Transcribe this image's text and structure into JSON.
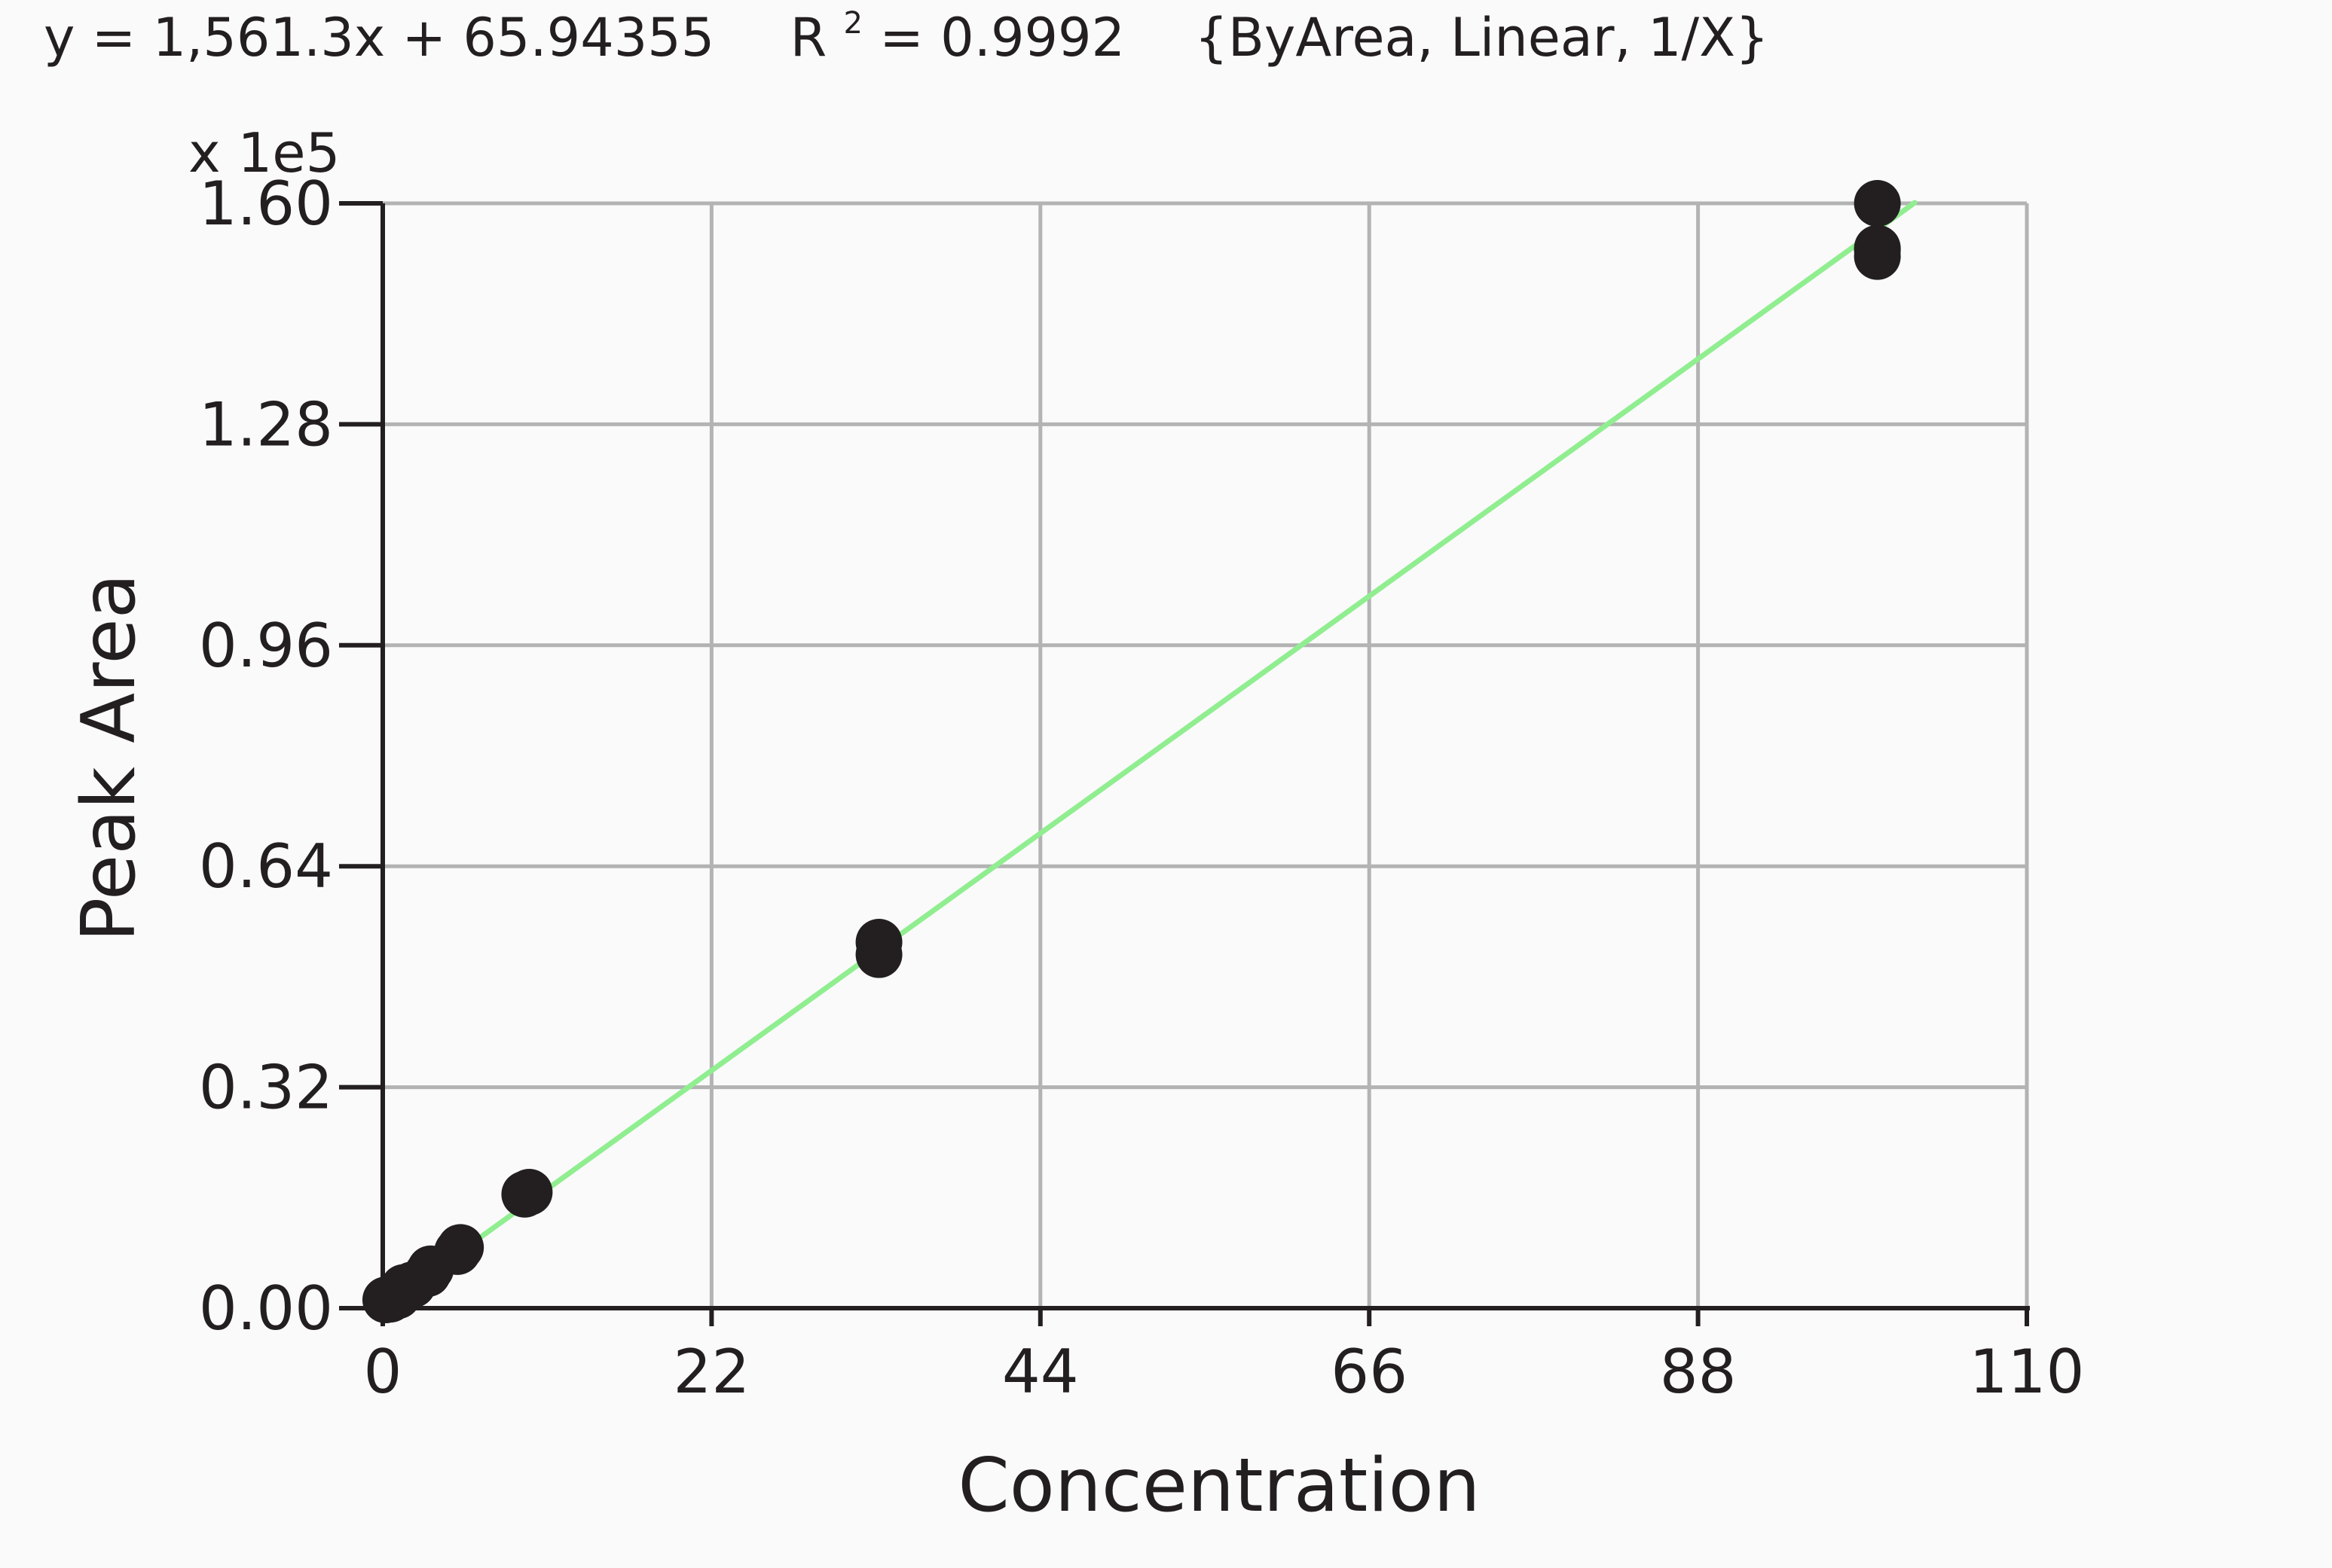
{
  "equation": {
    "prefix": "y = 1,561.3x + 65.94355",
    "r_symbol": "R",
    "r_exponent": "2",
    "r_value": " = 0.9992",
    "options": "{ByArea, Linear, 1/X}"
  },
  "colors": {
    "background": "#fafafa",
    "points": "#231f20",
    "fit_line": "#90ee90",
    "grid": "#b3b3b3",
    "axis": "#231f20"
  },
  "chart_data": {
    "type": "scatter",
    "xlabel": "Concentration",
    "ylabel": "Peak Area",
    "y_multiplier": "x 1e5",
    "xlim": [
      0,
      110
    ],
    "ylim": [
      0,
      1.6
    ],
    "x_ticks": [
      0,
      22,
      44,
      66,
      88,
      110
    ],
    "x_tick_labels": [
      "0",
      "22",
      "44",
      "66",
      "88",
      "110"
    ],
    "y_ticks": [
      0,
      0.32,
      0.64,
      0.96,
      1.28,
      1.6
    ],
    "y_tick_labels": [
      "0.00",
      "0.32",
      "0.64",
      "0.96",
      "1.28",
      "1.60"
    ],
    "grid": true,
    "fit": {
      "slope": 1561.3,
      "intercept": 65.94355,
      "x_range": [
        0.5,
        102.5
      ],
      "scale": 100000
    },
    "series": [
      {
        "values": [
          {
            "x": 0.2,
            "y": 0.012
          },
          {
            "x": 0.5,
            "y": 0.013
          },
          {
            "x": 1.0,
            "y": 0.018
          },
          {
            "x": 1.4,
            "y": 0.03
          },
          {
            "x": 2.0,
            "y": 0.034
          },
          {
            "x": 3.0,
            "y": 0.05
          },
          {
            "x": 3.2,
            "y": 0.057
          },
          {
            "x": 5.0,
            "y": 0.082
          },
          {
            "x": 5.2,
            "y": 0.088
          },
          {
            "x": 9.5,
            "y": 0.165
          },
          {
            "x": 9.8,
            "y": 0.168
          },
          {
            "x": 33.2,
            "y": 0.512
          },
          {
            "x": 33.2,
            "y": 0.53
          },
          {
            "x": 100,
            "y": 1.523
          },
          {
            "x": 100,
            "y": 1.535
          },
          {
            "x": 100,
            "y": 1.532
          },
          {
            "x": 100,
            "y": 1.6
          }
        ]
      }
    ]
  }
}
